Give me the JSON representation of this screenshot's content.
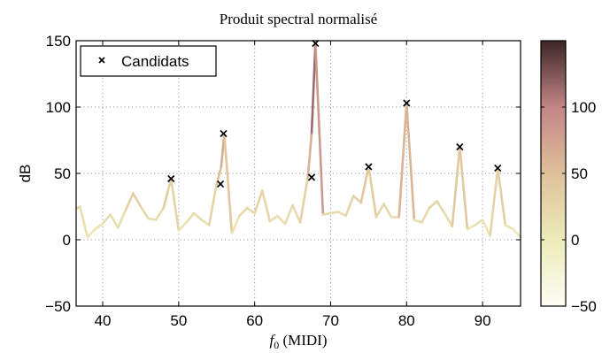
{
  "chart_data": {
    "type": "line",
    "title": "Produit spectral normalisé",
    "xlabel_italic": "f",
    "xlabel_sub": "0",
    "xlabel_rest": " (MIDI)",
    "ylabel": "dB",
    "xlim": [
      36.5,
      95
    ],
    "ylim": [
      -50,
      150
    ],
    "xticks": [
      40,
      50,
      60,
      70,
      80,
      90
    ],
    "yticks": [
      -50,
      0,
      50,
      100,
      150
    ],
    "grid": true,
    "legend": {
      "placement": "top-left",
      "entries": [
        "Candidats"
      ]
    },
    "colorbar": {
      "ticks": [
        -50,
        0,
        50,
        100
      ],
      "range": [
        -50,
        150
      ]
    },
    "series": [
      {
        "x": [
          36.5,
          37,
          38,
          39,
          40,
          41,
          42,
          43,
          44,
          45,
          46,
          47,
          48,
          49,
          50,
          51,
          52,
          53,
          54,
          55,
          55.6,
          56,
          57,
          58,
          59,
          60,
          61,
          62,
          63,
          64,
          65,
          66,
          67,
          67.5,
          68,
          69,
          70,
          71,
          72,
          73,
          74,
          75,
          76,
          77,
          78,
          79,
          80,
          81,
          82,
          83,
          84,
          85,
          86,
          87,
          88,
          89,
          90,
          91,
          92,
          93,
          94,
          95
        ],
        "values": [
          23,
          25,
          2,
          8,
          12,
          19,
          9,
          22,
          35,
          25,
          16,
          15,
          24,
          46,
          7,
          13,
          20,
          15,
          11,
          42,
          55,
          80,
          5,
          18,
          24,
          20,
          37,
          14,
          18,
          12,
          26,
          13,
          47,
          80,
          148,
          19,
          20,
          21,
          18,
          33,
          28,
          55,
          17,
          27,
          17,
          17,
          103,
          15,
          13,
          24,
          29,
          20,
          10,
          70,
          8,
          11,
          15,
          3,
          54,
          11,
          8,
          2
        ]
      }
    ],
    "markers": {
      "name": "Candidats",
      "x": [
        49,
        55.5,
        55.9,
        67.5,
        68,
        75,
        80,
        87,
        92
      ],
      "y": [
        46,
        42,
        80,
        47,
        148,
        55,
        103,
        70,
        54
      ]
    }
  }
}
